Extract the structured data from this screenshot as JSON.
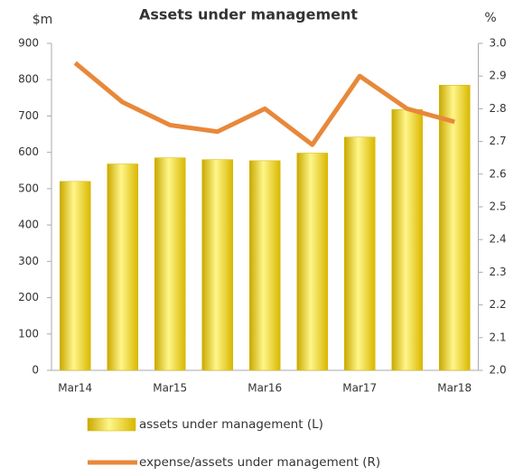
{
  "chart_data": {
    "type": "bar",
    "title": "Assets under management",
    "y_label": "$m",
    "y2_label": "%",
    "categories": [
      "Mar14",
      null,
      "Mar15",
      null,
      "Mar16",
      null,
      "Mar17",
      null,
      "Mar18"
    ],
    "series": [
      {
        "name": "assets under management (L)",
        "type": "bar",
        "color": "#f5d800",
        "values": [
          520,
          568,
          585,
          580,
          577,
          598,
          642,
          718,
          785
        ]
      },
      {
        "name": "expense/assets under management (R)",
        "type": "line",
        "axis": "y2",
        "color": "#e8883a",
        "values": [
          2.94,
          2.82,
          2.75,
          2.73,
          2.8,
          2.69,
          2.9,
          2.8,
          2.76
        ]
      }
    ],
    "ylim": [
      0,
      900
    ],
    "yticks": [
      0,
      100,
      200,
      300,
      400,
      500,
      600,
      700,
      800,
      900
    ],
    "y2lim": [
      2,
      3
    ],
    "y2ticks": [
      {
        "value": 2,
        "label": "2.0"
      },
      2.1,
      2.2,
      2.3,
      2.4,
      2.5,
      2.6,
      2.7,
      2.8,
      2.9,
      {
        "value": 3,
        "label": "3.0"
      }
    ],
    "legend": "bottom"
  }
}
